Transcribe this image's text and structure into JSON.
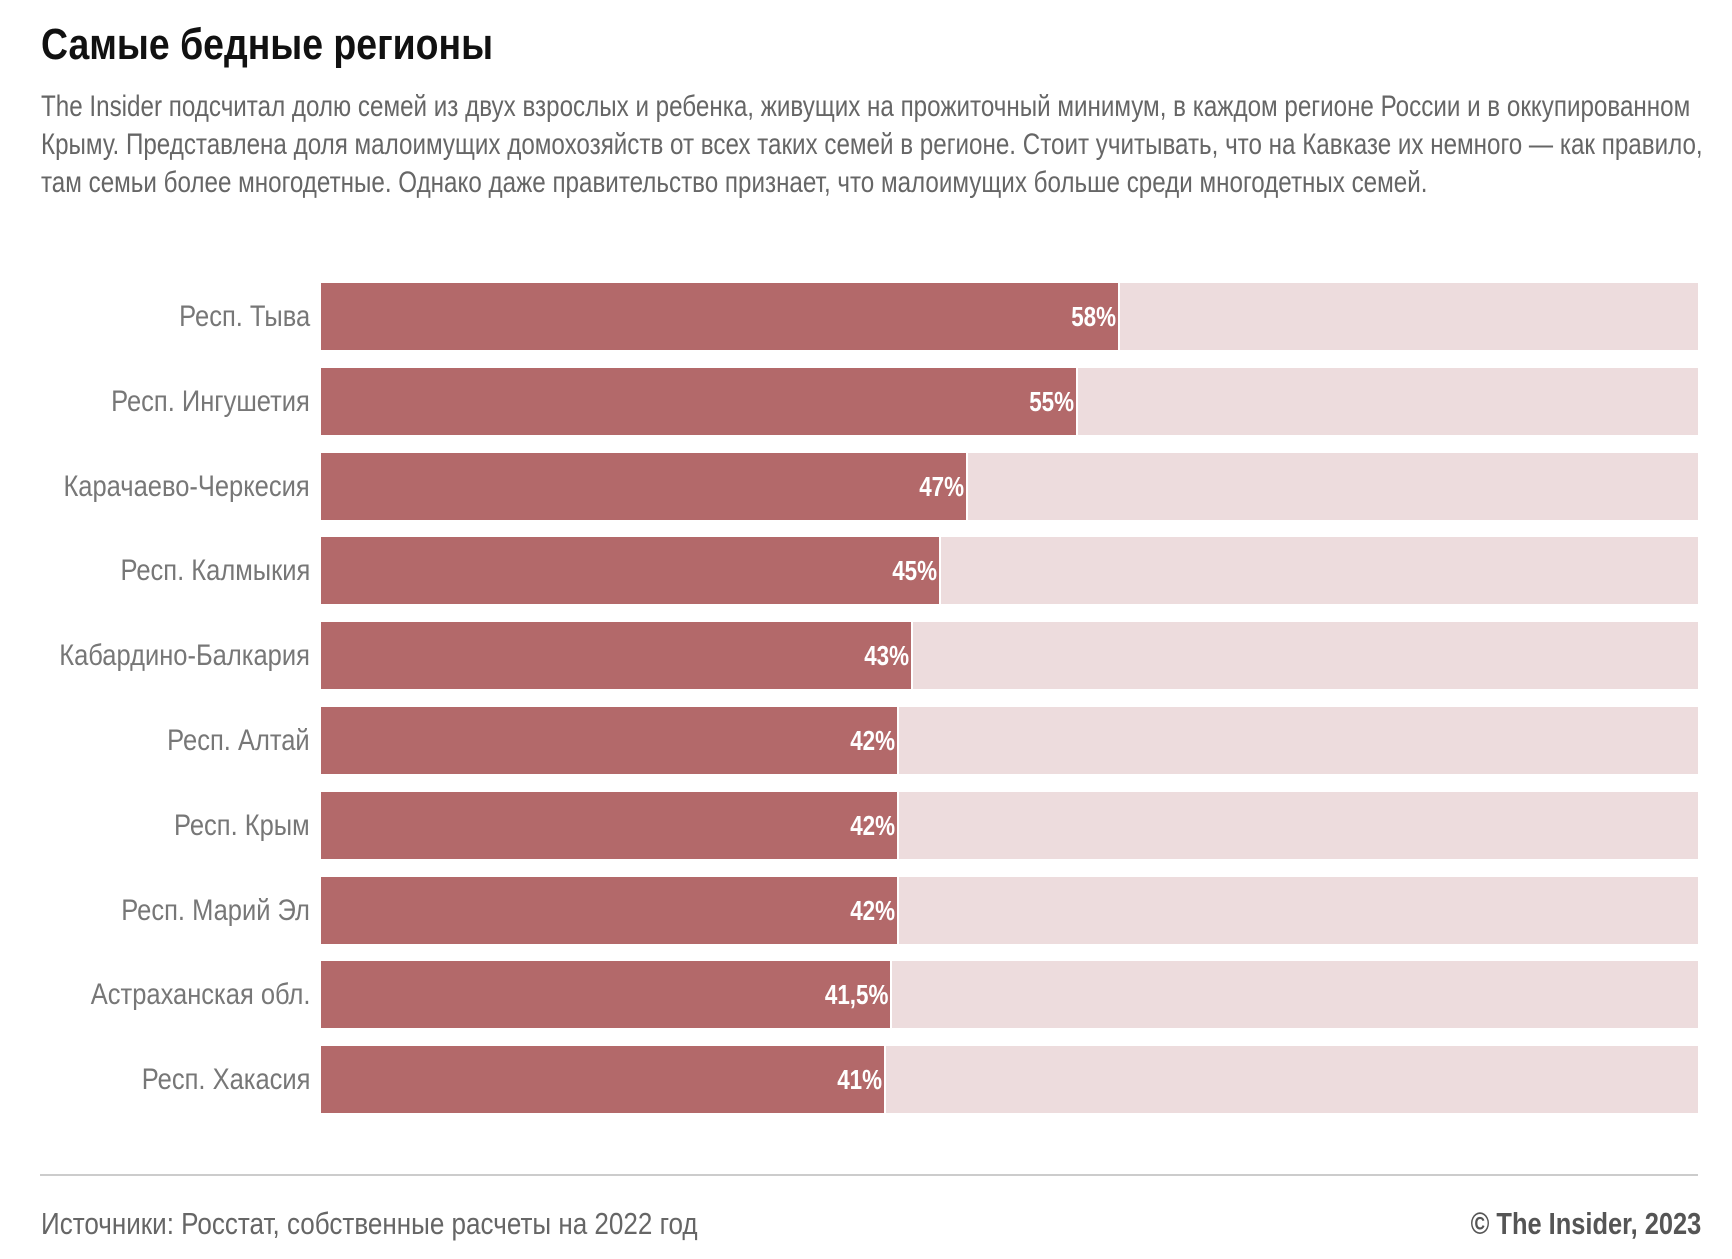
{
  "chart_data": {
    "type": "bar",
    "orientation": "horizontal",
    "title": "Самые бедные регионы",
    "subtitle": "The Insider подсчитал долю семей из двух взрослых и ребенка, живущих на прожиточный минимум, в каждом регионе России и в оккупированном Крыму. Представлена доля малоимущих домохозяйств от всех таких семей в регионе. Стоит учитывать, что на Кавказе их немного — как правило, там семьи более многодетные. Однако даже правительство признает, что малоимущих больше среди многодетных семей.",
    "categories": [
      "Респ. Тыва",
      "Респ. Ингушетия",
      "Карачаево-Черкесия",
      "Респ. Калмыкия",
      "Кабардино-Балкария",
      "Респ. Алтай",
      "Респ. Крым",
      "Респ. Марий Эл",
      "Астраханская обл.",
      "Респ. Хакасия"
    ],
    "values": [
      58,
      55,
      47,
      45,
      43,
      42,
      42,
      42,
      41.5,
      41
    ],
    "data_labels": [
      "58%",
      "55%",
      "47%",
      "45%",
      "43%",
      "42%",
      "42%",
      "42%",
      "41,5%",
      "41%"
    ],
    "xlim": [
      0,
      100
    ],
    "grid": false,
    "colors": {
      "bar": "#b3696a",
      "track": "#eddcdd"
    }
  },
  "footer": {
    "source": "Источники: Росстат, собственные расчеты на 2022 год",
    "credit": "© The Insider, 2023"
  }
}
